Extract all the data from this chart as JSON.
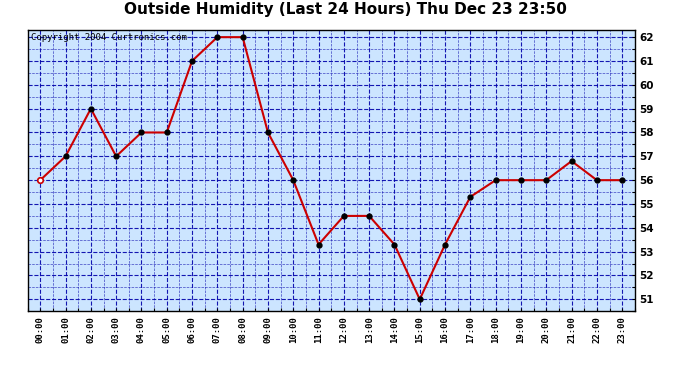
{
  "title": "Outside Humidity (Last 24 Hours) Thu Dec 23 23:50",
  "copyright": "Copyright 2004 Curtronics.com",
  "x_labels": [
    "00:00",
    "01:00",
    "02:00",
    "03:00",
    "04:00",
    "05:00",
    "06:00",
    "07:00",
    "08:00",
    "09:00",
    "10:00",
    "11:00",
    "12:00",
    "13:00",
    "14:00",
    "15:00",
    "16:00",
    "17:00",
    "18:00",
    "19:00",
    "20:00",
    "21:00",
    "22:00",
    "23:00"
  ],
  "y_values": [
    56,
    57,
    59,
    57,
    58,
    58,
    61,
    62,
    62,
    58,
    56,
    53.3,
    54.5,
    54.5,
    53.3,
    51,
    53.3,
    55.3,
    56,
    56,
    56,
    56.8,
    56,
    56
  ],
  "y_min": 51,
  "y_max": 62,
  "y_ticks": [
    51,
    52,
    53,
    54,
    55,
    56,
    57,
    58,
    59,
    60,
    61,
    62
  ],
  "line_color": "#cc0000",
  "marker_color": "#000000",
  "bg_color": "#cce5ff",
  "grid_color": "#0000aa",
  "border_color": "#000000",
  "title_bg": "#ffffff",
  "title_fontsize": 11,
  "copyright_fontsize": 6.5
}
